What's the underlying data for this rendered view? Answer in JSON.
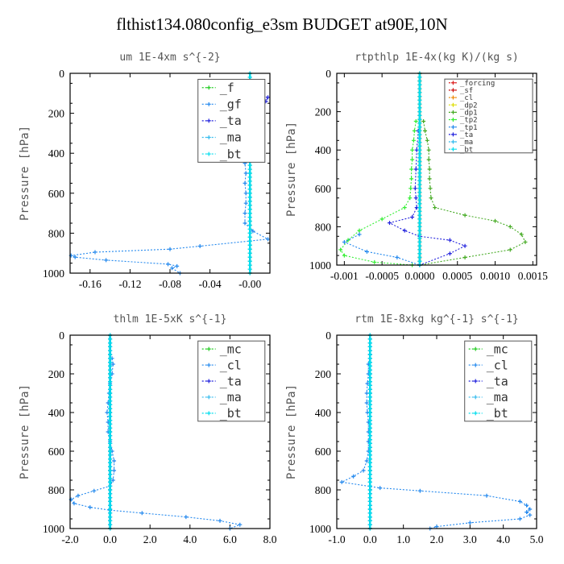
{
  "title": "flthist134.080config_e3sm  BUDGET at90E,10N",
  "chart_data": [
    {
      "type": "line",
      "title": "um  1E-4xm s^{-2}",
      "ylabel": "Pressure [hPa]",
      "xlim": [
        -0.18,
        0.02
      ],
      "ylim": [
        1000,
        0
      ],
      "xticks": [
        -0.16,
        -0.12,
        -0.08,
        -0.04,
        -0.0
      ],
      "xtick_labels": [
        "-0.16",
        "-0.12",
        "-0.08",
        "-0.04",
        "-0.00"
      ],
      "yticks": [
        0,
        200,
        400,
        600,
        800,
        1000
      ],
      "legend": [
        "_f",
        "_gf",
        "_ta",
        "_ma",
        "_bt"
      ],
      "legend_small": false,
      "legend_box": [
        0.64,
        0.97,
        0.975,
        0.555
      ],
      "series": [
        {
          "name": "_f",
          "color": "#22cc22",
          "x": [
            0,
            0
          ],
          "y": [
            0,
            1000
          ]
        },
        {
          "name": "_gf",
          "color": "#2288ee",
          "x": [
            -0.0,
            -0.002,
            -0.003,
            -0.003,
            -0.004,
            -0.004,
            -0.004,
            -0.005,
            -0.004,
            -0.005,
            -0.004,
            -0.004,
            -0.005,
            -0.005,
            0.003,
            0.018,
            -0.05,
            -0.08,
            -0.155,
            -0.179,
            -0.175,
            -0.144,
            -0.082,
            -0.073,
            -0.078,
            -0.07
          ],
          "y": [
            105,
            150,
            200,
            250,
            300,
            350,
            400,
            450,
            500,
            550,
            600,
            650,
            700,
            750,
            790,
            830,
            865,
            880,
            895,
            912,
            920,
            935,
            955,
            965,
            975,
            1000
          ]
        },
        {
          "name": "_ta",
          "color": "#2222dd",
          "x": [
            -0.0,
            0.01,
            0.018,
            0.016,
            0.005,
            -0.001,
            -0.003,
            -0.004
          ],
          "y": [
            105,
            110,
            120,
            140,
            160,
            175,
            190,
            200
          ]
        },
        {
          "name": "_ma",
          "color": "#33bbee",
          "x": [
            0,
            0
          ],
          "y": [
            0,
            1000
          ]
        },
        {
          "name": "_bt",
          "color": "#00ddee",
          "x": [
            0,
            0
          ],
          "y": [
            0,
            1000
          ]
        }
      ]
    },
    {
      "type": "line",
      "title": "rtpthlp  1E-4x(kg K)/(kg s)",
      "ylabel": "Pressure [hPa]",
      "xlim": [
        -0.0011,
        0.00155
      ],
      "ylim": [
        1000,
        0
      ],
      "xticks": [
        -0.001,
        -0.0005,
        0.0,
        0.0005,
        0.001,
        0.0015
      ],
      "xtick_labels": [
        "-0.001",
        "-0.0005",
        "0.0000",
        "0.0005",
        "0.0010",
        "0.0015"
      ],
      "xtick_labels_note": "labels printed run together in the original",
      "yticks": [
        0,
        200,
        400,
        600,
        800,
        1000
      ],
      "legend": [
        "_forcing",
        "_sf",
        "_cl",
        "_dp2",
        "_dp1",
        "_tp2",
        "_tp1",
        "_ta",
        "_ma",
        "_bt"
      ],
      "legend_small": true,
      "legend_box": [
        0.54,
        0.97,
        0.98,
        0.585
      ],
      "series": [
        {
          "name": "_forcing",
          "color": "#dd2222",
          "x": [
            0,
            0
          ],
          "y": [
            0,
            1000
          ]
        },
        {
          "name": "_sf",
          "color": "#cc1111",
          "x": [
            0,
            0
          ],
          "y": [
            0,
            1000
          ]
        },
        {
          "name": "_cl",
          "color": "#ee8800",
          "x": [
            0,
            0
          ],
          "y": [
            0,
            1000
          ]
        },
        {
          "name": "_dp2",
          "color": "#dddd00",
          "x": [
            0,
            0
          ],
          "y": [
            0,
            1000
          ]
        },
        {
          "name": "_dp1",
          "color": "#44aa22",
          "x": [
            5e-05,
            7e-05,
            0.0001,
            0.00012,
            0.00012,
            0.00013,
            0.00013,
            0.00014,
            0.00015,
            0.0002,
            0.0006,
            0.001,
            0.0012,
            0.00135,
            0.0014,
            0.0012,
            0.0006,
            0.0
          ],
          "y": [
            250,
            300,
            350,
            400,
            450,
            500,
            550,
            600,
            650,
            700,
            740,
            770,
            800,
            840,
            880,
            920,
            960,
            1000
          ]
        },
        {
          "name": "_tp2",
          "color": "#33ee33",
          "x": [
            -5e-05,
            -7e-05,
            -8e-05,
            -0.0001,
            -0.0001,
            -0.00011,
            -0.00011,
            -0.00012,
            -0.00013,
            -0.0002,
            -0.0005,
            -0.0008,
            -0.00095,
            -0.00105,
            -0.001,
            -0.0006,
            -0.0001
          ],
          "y": [
            250,
            300,
            350,
            400,
            450,
            500,
            550,
            600,
            650,
            700,
            760,
            820,
            870,
            920,
            950,
            985,
            1000
          ]
        },
        {
          "name": "_tp1",
          "color": "#2288ee",
          "x": [
            -0.0008,
            -0.001,
            -0.0007,
            -0.0003,
            0.0
          ],
          "y": [
            840,
            880,
            930,
            960,
            1000
          ]
        },
        {
          "name": "_ta",
          "color": "#2222dd",
          "x": [
            -2e-05,
            -4e-05,
            -5e-05,
            -6e-05,
            -5e-05,
            -4e-05,
            -0.0001,
            -0.0004,
            -0.0002,
            0.0,
            0.0004,
            0.0006,
            0.0004,
            0.0
          ],
          "y": [
            300,
            400,
            500,
            600,
            650,
            700,
            750,
            780,
            820,
            850,
            870,
            900,
            940,
            1000
          ]
        },
        {
          "name": "_ma",
          "color": "#33bbee",
          "x": [
            0,
            0
          ],
          "y": [
            0,
            1000
          ]
        },
        {
          "name": "_bt",
          "color": "#00ddee",
          "x": [
            0,
            0
          ],
          "y": [
            0,
            1000
          ]
        }
      ]
    },
    {
      "type": "line",
      "title": "thlm  1E-5xK s^{-1}",
      "ylabel": "Pressure [hPa]",
      "xlim": [
        -2.0,
        8.0
      ],
      "ylim": [
        1000,
        0
      ],
      "xticks": [
        -2.0,
        0.0,
        2.0,
        4.0,
        6.0,
        8.0
      ],
      "xtick_labels": [
        "-2.0",
        "0.0",
        "2.0",
        "4.0",
        "6.0",
        "8.0"
      ],
      "yticks": [
        0,
        200,
        400,
        600,
        800,
        1000
      ],
      "legend": [
        "_mc",
        "_cl",
        "_ta",
        "_ma",
        "_bt"
      ],
      "legend_small": false,
      "legend_box": [
        0.64,
        0.97,
        0.975,
        0.555
      ],
      "series": [
        {
          "name": "_mc",
          "color": "#22cc22",
          "x": [
            0,
            0
          ],
          "y": [
            0,
            1000
          ]
        },
        {
          "name": "_cl",
          "color": "#2288ee",
          "x": [
            0.1,
            0.15,
            0.1,
            0.0,
            -0.05,
            -0.1,
            -0.15,
            -0.1,
            -0.1,
            0.0,
            0.1,
            0.2,
            0.2,
            0.15,
            0.0,
            -0.8,
            -1.6,
            -1.95,
            -1.8,
            -1.0,
            0.0,
            1.6,
            3.8,
            5.5,
            6.5,
            6.0
          ],
          "y": [
            120,
            150,
            200,
            250,
            300,
            350,
            400,
            450,
            500,
            550,
            600,
            650,
            700,
            750,
            780,
            805,
            830,
            850,
            870,
            890,
            905,
            920,
            940,
            960,
            980,
            1000
          ]
        },
        {
          "name": "_ta",
          "color": "#2222dd",
          "x": [
            0,
            0
          ],
          "y": [
            0,
            1000
          ]
        },
        {
          "name": "_ma",
          "color": "#33bbee",
          "x": [
            0,
            0
          ],
          "y": [
            0,
            1000
          ]
        },
        {
          "name": "_bt",
          "color": "#00ddee",
          "x": [
            0,
            0
          ],
          "y": [
            0,
            1000
          ]
        }
      ]
    },
    {
      "type": "line",
      "title": "rtm  1E-8xkg kg^{-1} s^{-1}",
      "ylabel": "Pressure [hPa]",
      "xlim": [
        -1.0,
        5.0
      ],
      "ylim": [
        1000,
        0
      ],
      "xticks": [
        -1.0,
        0.0,
        1.0,
        2.0,
        3.0,
        4.0,
        5.0
      ],
      "xtick_labels": [
        "-1.0",
        "0.0",
        "1.0",
        "2.0",
        "3.0",
        "4.0",
        "5.0"
      ],
      "yticks": [
        0,
        200,
        400,
        600,
        800,
        1000
      ],
      "legend": [
        "_mc",
        "_cl",
        "_ta",
        "_ma",
        "_bt"
      ],
      "legend_small": false,
      "legend_box": [
        0.64,
        0.97,
        0.975,
        0.555
      ],
      "series": [
        {
          "name": "_mc",
          "color": "#22cc22",
          "x": [
            0,
            0
          ],
          "y": [
            0,
            1000
          ]
        },
        {
          "name": "_cl",
          "color": "#2288ee",
          "x": [
            0.0,
            -0.05,
            -0.05,
            -0.08,
            -0.1,
            -0.1,
            -0.08,
            -0.05,
            -0.05,
            -0.05,
            -0.05,
            -0.1,
            -0.2,
            -0.5,
            -0.85,
            0.3,
            1.5,
            3.5,
            4.5,
            4.7,
            4.8,
            4.7,
            4.8,
            4.5,
            3.0,
            2.0,
            1.8
          ],
          "y": [
            100,
            150,
            200,
            250,
            300,
            350,
            400,
            450,
            500,
            550,
            600,
            650,
            700,
            730,
            760,
            790,
            805,
            830,
            860,
            880,
            900,
            915,
            930,
            950,
            970,
            990,
            1000
          ]
        },
        {
          "name": "_ta",
          "color": "#2222dd",
          "x": [
            0,
            0
          ],
          "y": [
            0,
            1000
          ]
        },
        {
          "name": "_ma",
          "color": "#33bbee",
          "x": [
            0,
            0
          ],
          "y": [
            0,
            1000
          ]
        },
        {
          "name": "_bt",
          "color": "#00ddee",
          "x": [
            0,
            0
          ],
          "y": [
            0,
            1000
          ]
        }
      ]
    }
  ]
}
